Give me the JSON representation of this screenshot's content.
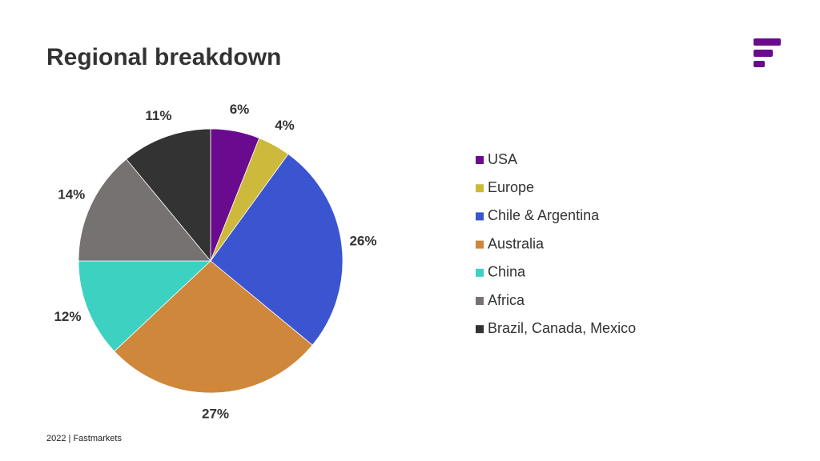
{
  "chart_data": {
    "type": "pie",
    "title": "Regional breakdown",
    "categories": [
      "USA",
      "Europe",
      "Chile & Argentina",
      "Australia",
      "China",
      "Africa",
      "Brazil, Canada, Mexico"
    ],
    "values": [
      6,
      4,
      26,
      27,
      12,
      14,
      11
    ],
    "value_labels": [
      "6%",
      "4%",
      "26%",
      "27%",
      "12%",
      "14%",
      "11%"
    ],
    "colors": [
      "#6a0a8e",
      "#cdb93b",
      "#3b55d0",
      "#cf873b",
      "#3dd1c2",
      "#767271",
      "#333333"
    ],
    "legend": "right"
  },
  "footer": "2022 | Fastmarkets"
}
